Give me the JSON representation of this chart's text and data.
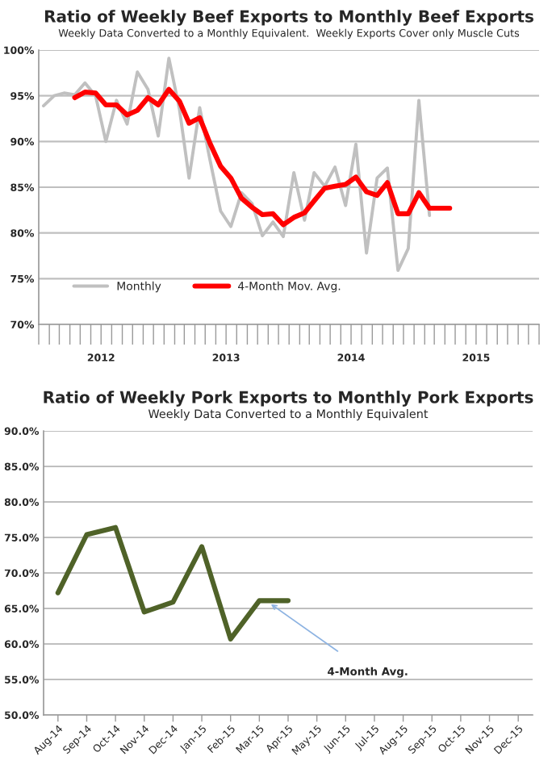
{
  "chart_data": [
    {
      "type": "line",
      "title": "Ratio of Weekly Beef Exports to Monthly Beef Exports",
      "subtitle": "Weekly Data Converted to a Monthly Equivalent.  Weekly Exports Cover only Muscle Cuts",
      "series": [
        {
          "name": "Monthly",
          "color": "#c0c0c0",
          "x": [
            "2012-01-15",
            "2012-02-15",
            "2012-03-15",
            "2012-04-15",
            "2012-05-15",
            "2012-06-15",
            "2012-07-15",
            "2012-08-15",
            "2012-09-15",
            "2012-10-15",
            "2012-11-15",
            "2012-12-15",
            "2013-01-15",
            "2013-02-15",
            "2013-03-15",
            "2013-04-15",
            "2013-05-15",
            "2013-06-15",
            "2013-07-15",
            "2013-08-15",
            "2013-09-15",
            "2013-10-15",
            "2013-11-15",
            "2013-12-15",
            "2014-01-15",
            "2014-02-15",
            "2014-03-15",
            "2014-04-15",
            "2014-05-15",
            "2014-06-15",
            "2014-07-15",
            "2014-08-15",
            "2014-09-15",
            "2014-10-15",
            "2014-11-15",
            "2014-12-15",
            "2015-01-15",
            "2015-02-15"
          ],
          "values": [
            93.9,
            95.0,
            95.3,
            95.1,
            96.4,
            95.0,
            90.0,
            94.5,
            91.9,
            97.6,
            95.7,
            90.6,
            99.1,
            93.5,
            86.0,
            93.7,
            88.0,
            82.4,
            80.7,
            84.4,
            83.2,
            79.7,
            81.2,
            79.6,
            86.6,
            81.4,
            86.6,
            85.1,
            87.2,
            83.0,
            89.7,
            77.8,
            86.0,
            87.1,
            75.9,
            78.3,
            94.5,
            81.9
          ]
        },
        {
          "name": "4-Month Mov. Avg.",
          "color": "#ff0000",
          "x": [
            "2012-04-15",
            "2012-05-15",
            "2012-06-15",
            "2012-07-15",
            "2012-08-15",
            "2012-09-15",
            "2012-10-15",
            "2012-11-15",
            "2012-12-15",
            "2013-01-15",
            "2013-02-15",
            "2013-03-15",
            "2013-04-15",
            "2013-05-15",
            "2013-06-15",
            "2013-07-15",
            "2013-08-15",
            "2013-09-15",
            "2013-10-15",
            "2013-11-15",
            "2013-12-15",
            "2014-01-15",
            "2014-02-15",
            "2014-03-15",
            "2014-04-15",
            "2014-05-15",
            "2014-06-15",
            "2014-07-15",
            "2014-08-15",
            "2014-09-15",
            "2014-10-15",
            "2014-11-15",
            "2014-12-15",
            "2015-01-15",
            "2015-02-15",
            "2015-03-15",
            "2015-04-15"
          ],
          "values": [
            94.8,
            95.4,
            95.3,
            94.0,
            94.0,
            92.9,
            93.4,
            94.8,
            94.0,
            95.7,
            94.4,
            92.0,
            92.6,
            89.8,
            87.3,
            86.0,
            83.8,
            82.8,
            82.0,
            82.1,
            80.9,
            81.7,
            82.2,
            83.5,
            84.9,
            85.1,
            85.3,
            86.1,
            84.5,
            84.1,
            85.5,
            82.1,
            82.1,
            84.4,
            82.7,
            82.7,
            82.7
          ]
        }
      ],
      "xlim": [
        "2012-01-01",
        "2016-01-01"
      ],
      "xticks": [
        {
          "value": "2012-01-01",
          "label": null
        },
        {
          "value": "2012-02-01",
          "label": null
        },
        {
          "value": "2012-03-01",
          "label": null
        },
        {
          "value": "2012-04-01",
          "label": null
        },
        {
          "value": "2012-05-01",
          "label": null
        },
        {
          "value": "2012-06-01",
          "label": null
        },
        {
          "value": "2012-07-01",
          "label": "2012"
        },
        {
          "value": "2012-08-01",
          "label": null
        },
        {
          "value": "2012-09-01",
          "label": null
        },
        {
          "value": "2012-10-01",
          "label": null
        },
        {
          "value": "2012-11-01",
          "label": null
        },
        {
          "value": "2012-12-01",
          "label": null
        },
        {
          "value": "2013-01-01",
          "label": null
        },
        {
          "value": "2013-02-01",
          "label": null
        },
        {
          "value": "2013-03-01",
          "label": null
        },
        {
          "value": "2013-04-01",
          "label": null
        },
        {
          "value": "2013-05-01",
          "label": null
        },
        {
          "value": "2013-06-01",
          "label": null
        },
        {
          "value": "2013-07-01",
          "label": "2013"
        },
        {
          "value": "2013-08-01",
          "label": null
        },
        {
          "value": "2013-09-01",
          "label": null
        },
        {
          "value": "2013-10-01",
          "label": null
        },
        {
          "value": "2013-11-01",
          "label": null
        },
        {
          "value": "2013-12-01",
          "label": null
        },
        {
          "value": "2014-01-01",
          "label": null
        },
        {
          "value": "2014-02-01",
          "label": null
        },
        {
          "value": "2014-03-01",
          "label": null
        },
        {
          "value": "2014-04-01",
          "label": null
        },
        {
          "value": "2014-05-01",
          "label": null
        },
        {
          "value": "2014-06-01",
          "label": null
        },
        {
          "value": "2014-07-01",
          "label": "2014"
        },
        {
          "value": "2014-08-01",
          "label": null
        },
        {
          "value": "2014-09-01",
          "label": null
        },
        {
          "value": "2014-10-01",
          "label": null
        },
        {
          "value": "2014-11-01",
          "label": null
        },
        {
          "value": "2014-12-01",
          "label": null
        },
        {
          "value": "2015-01-01",
          "label": null
        },
        {
          "value": "2015-02-01",
          "label": null
        },
        {
          "value": "2015-03-01",
          "label": null
        },
        {
          "value": "2015-04-01",
          "label": null
        },
        {
          "value": "2015-05-01",
          "label": null
        },
        {
          "value": "2015-06-01",
          "label": null
        },
        {
          "value": "2015-07-01",
          "label": "2015"
        },
        {
          "value": "2015-08-01",
          "label": null
        },
        {
          "value": "2015-09-01",
          "label": null
        },
        {
          "value": "2015-10-01",
          "label": null
        },
        {
          "value": "2015-11-01",
          "label": null
        },
        {
          "value": "2015-12-01",
          "label": null
        },
        {
          "value": "2016-01-01",
          "label": null
        }
      ],
      "ylim": [
        70,
        100
      ],
      "yticks": [
        {
          "value": 70,
          "label": "70%"
        },
        {
          "value": 75,
          "label": "75%"
        },
        {
          "value": 80,
          "label": "80%"
        },
        {
          "value": 85,
          "label": "85%"
        },
        {
          "value": 90,
          "label": "90%"
        },
        {
          "value": 95,
          "label": "95%"
        },
        {
          "value": 100,
          "label": "100%"
        }
      ],
      "grid": "y",
      "legend": "bottom left",
      "marker": "none",
      "line_style": "solid"
    },
    {
      "type": "line",
      "title": "Ratio of Weekly Pork Exports to Monthly Pork Exports",
      "subtitle": "Weekly Data Converted to a Monthly Equivalent",
      "categories": [
        "Aug-14",
        "Sep-14",
        "Oct-14",
        "Nov-14",
        "Dec-14",
        "Jan-15",
        "Feb-15",
        "Mar-15",
        "Apr-15",
        "May-15",
        "Jun-15",
        "Jul-15",
        "Aug-15",
        "Sep-15",
        "Oct-15",
        "Nov-15",
        "Dec-15"
      ],
      "series": [
        {
          "color": "#4f6228",
          "values": [
            67.2,
            75.4,
            76.4,
            64.5,
            65.9,
            73.7,
            60.7,
            66.1,
            66.1,
            null,
            null,
            null,
            null,
            null,
            null,
            null,
            null
          ]
        }
      ],
      "ylim": [
        50,
        90
      ],
      "yticks": [
        {
          "value": 50,
          "label": "50.0%"
        },
        {
          "value": 55,
          "label": "55.0%"
        },
        {
          "value": 60,
          "label": "60.0%"
        },
        {
          "value": 65,
          "label": "65.0%"
        },
        {
          "value": 70,
          "label": "70.0%"
        },
        {
          "value": 75,
          "label": "75.0%"
        },
        {
          "value": 80,
          "label": "80.0%"
        },
        {
          "value": 85,
          "label": "85.0%"
        },
        {
          "value": 90,
          "label": "90.0%"
        }
      ],
      "annotations": [
        "4-Month Avg."
      ],
      "grid": "y",
      "marker": "none",
      "line_style": "solid"
    }
  ]
}
